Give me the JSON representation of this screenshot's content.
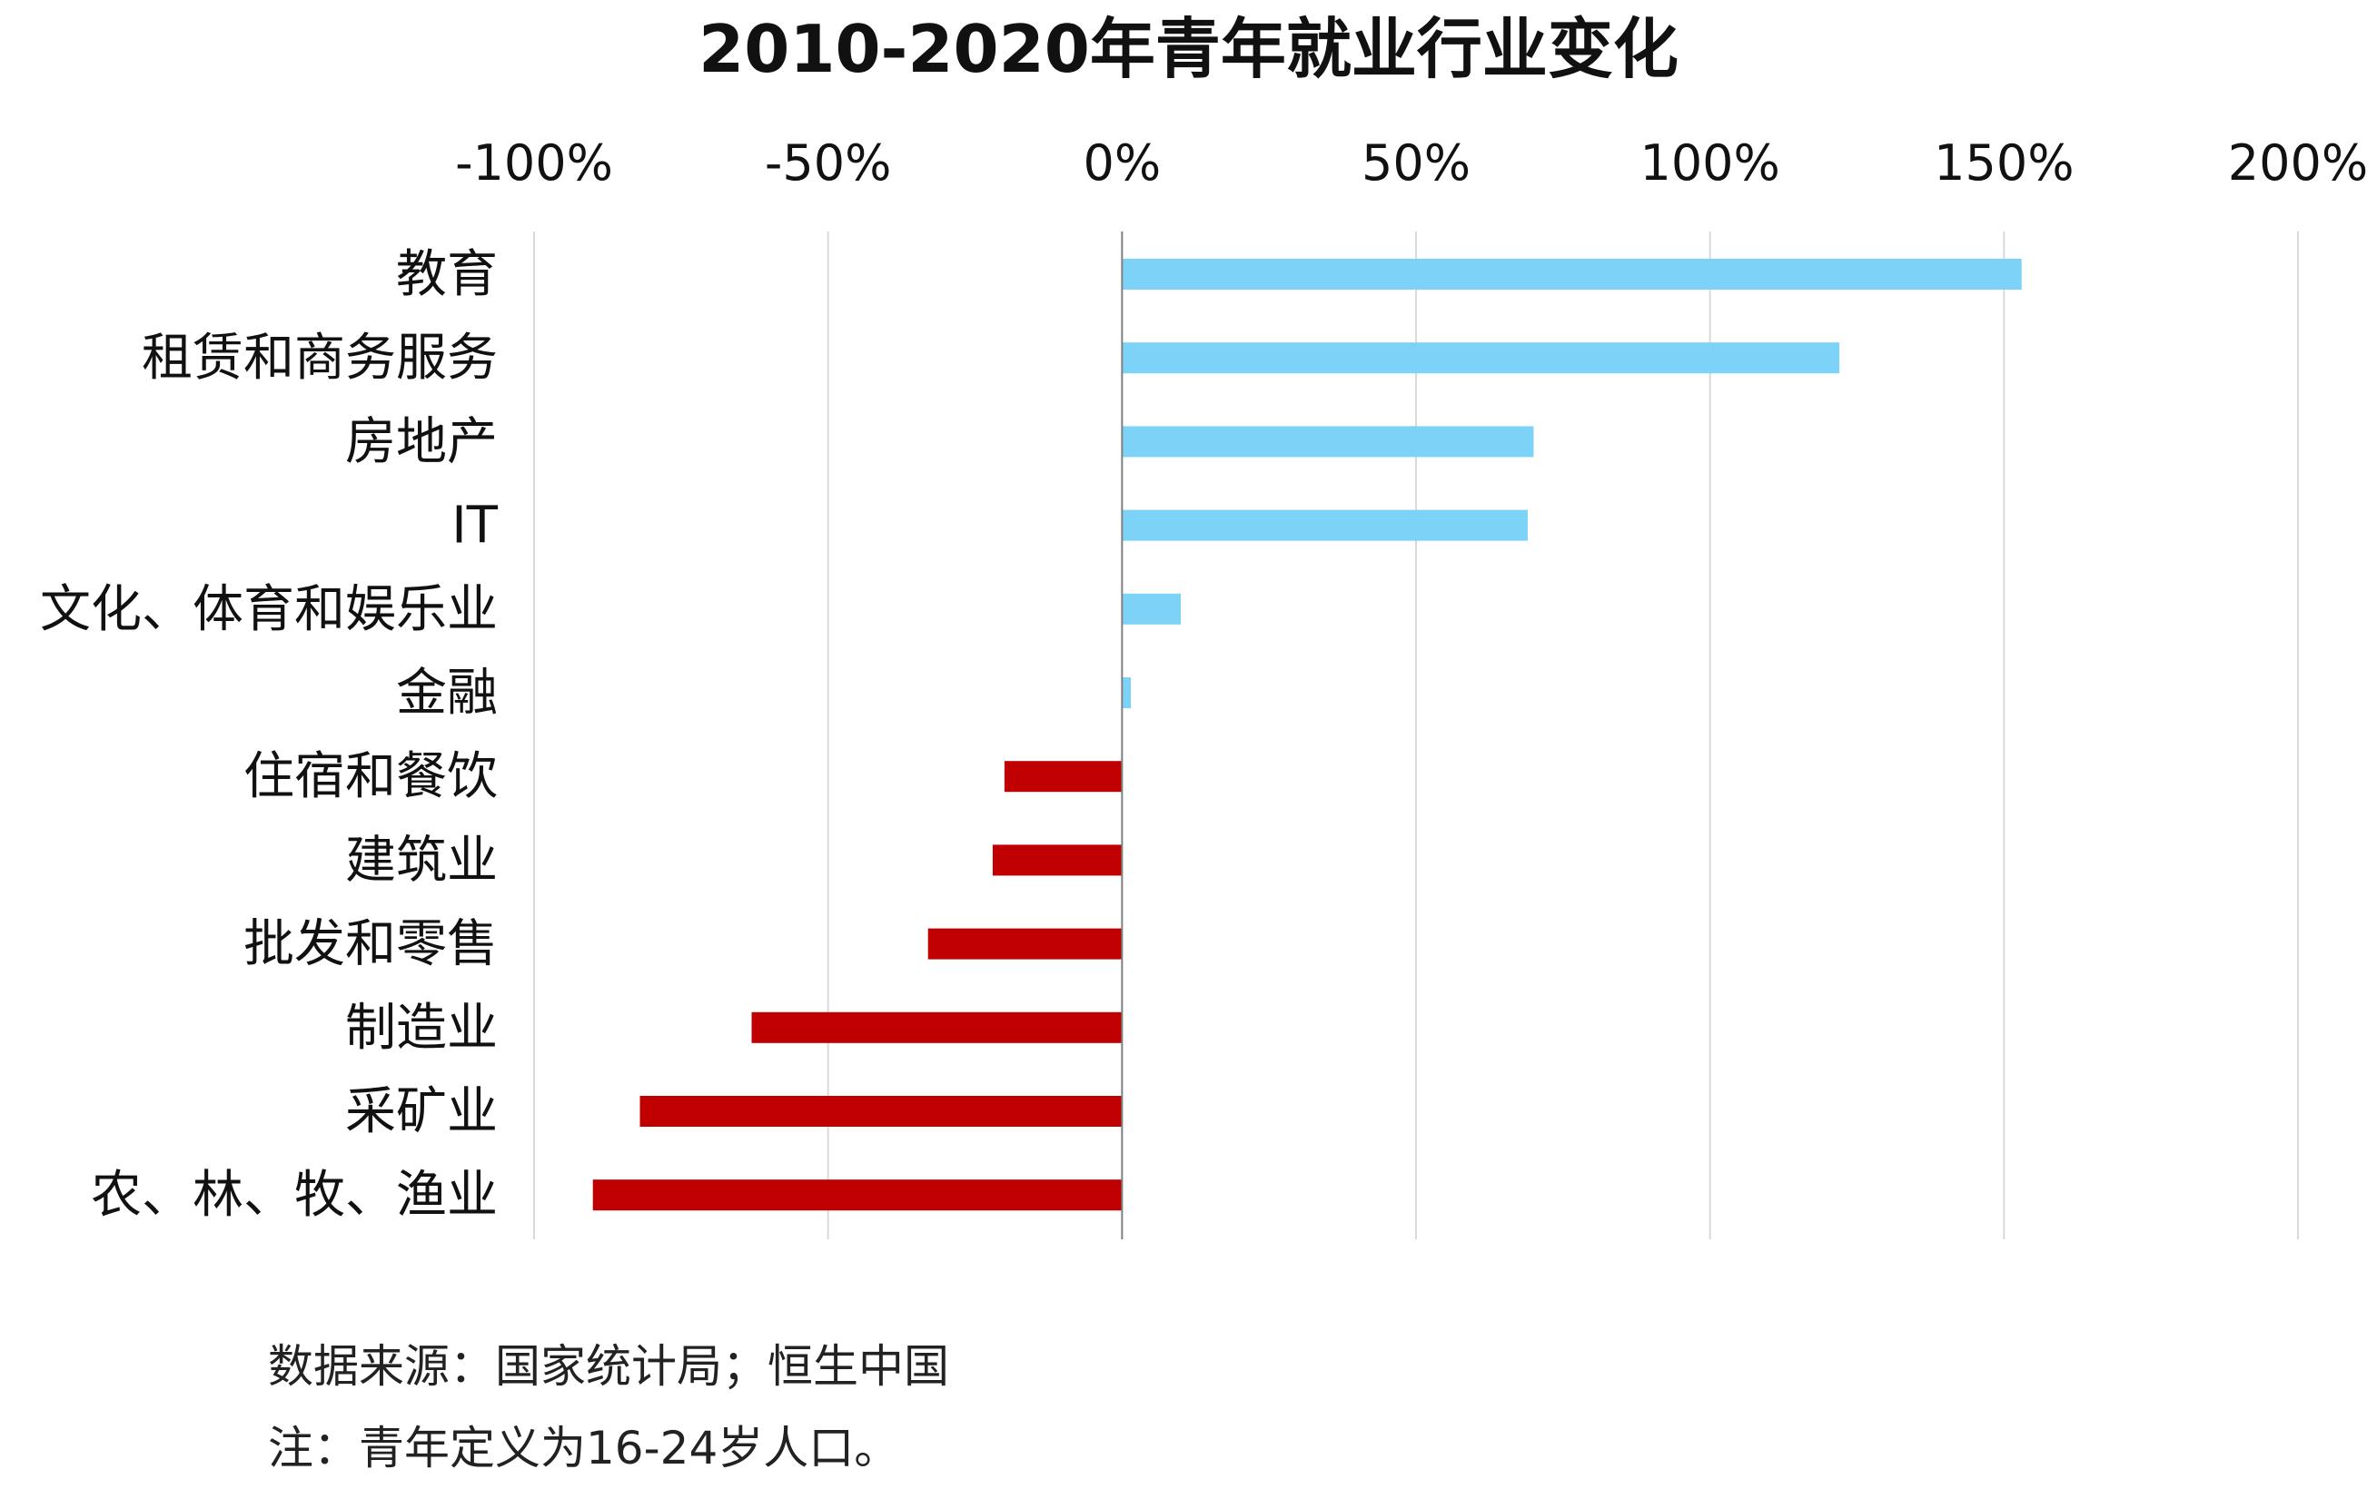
{
  "chart_data": {
    "type": "bar",
    "orientation": "horizontal",
    "title": "2010-2020年青年就业行业变化",
    "categories": [
      "教育",
      "租赁和商务服务",
      "房地产",
      "IT",
      "文化、体育和娱乐业",
      "金融",
      "住宿和餐饮",
      "建筑业",
      "批发和零售",
      "制造业",
      "采矿业",
      "农、林、牧、渔业"
    ],
    "values": [
      153,
      122,
      70,
      69,
      10,
      1.5,
      -20,
      -22,
      -33,
      -63,
      -82,
      -90
    ],
    "xlim": [
      -100,
      200
    ],
    "xticks": [
      -100,
      -50,
      0,
      50,
      100,
      150,
      200
    ],
    "xtick_labels": [
      "-100%",
      "-50%",
      "0%",
      "50%",
      "100%",
      "150%",
      "200%"
    ],
    "xaxis_position": "top",
    "grid": true,
    "legend": "none",
    "colors": {
      "positive": "#7dd3f7",
      "negative": "#c00000",
      "grid": "#d9d9d9",
      "zero_line": "#7f7f7f"
    }
  },
  "footer": {
    "source": "数据来源：国家统计局；恒生中国",
    "note": "注：青年定义为16-24岁人口。"
  }
}
